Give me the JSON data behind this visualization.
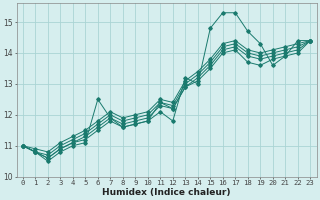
{
  "title": "",
  "xlabel": "Humidex (Indice chaleur)",
  "xlim": [
    -0.5,
    23.5
  ],
  "ylim": [
    10.0,
    15.6
  ],
  "yticks": [
    10,
    11,
    12,
    13,
    14,
    15
  ],
  "xticks": [
    0,
    1,
    2,
    3,
    4,
    5,
    6,
    7,
    8,
    9,
    10,
    11,
    12,
    13,
    14,
    15,
    16,
    17,
    18,
    19,
    20,
    21,
    22,
    23
  ],
  "bg_color": "#d6eeee",
  "grid_color": "#aad4d4",
  "line_color": "#1a7a6e",
  "lines": [
    [
      11.0,
      10.8,
      10.5,
      10.8,
      11.0,
      11.1,
      12.5,
      11.9,
      11.6,
      11.7,
      11.8,
      12.1,
      11.8,
      13.2,
      13.0,
      14.8,
      15.3,
      15.3,
      14.7,
      14.3,
      13.6,
      13.9,
      14.4,
      14.4
    ],
    [
      11.0,
      10.8,
      10.6,
      10.9,
      11.1,
      11.2,
      11.5,
      11.8,
      11.6,
      11.7,
      11.8,
      12.4,
      12.2,
      12.9,
      13.1,
      13.5,
      14.0,
      14.1,
      13.7,
      13.6,
      13.8,
      13.9,
      14.0,
      14.4
    ],
    [
      11.0,
      10.8,
      10.6,
      10.9,
      11.1,
      11.3,
      11.6,
      11.9,
      11.7,
      11.8,
      11.9,
      12.3,
      12.2,
      12.9,
      13.2,
      13.6,
      14.1,
      14.2,
      13.9,
      13.8,
      13.9,
      14.0,
      14.1,
      14.4
    ],
    [
      11.0,
      10.8,
      10.7,
      11.0,
      11.2,
      11.4,
      11.7,
      12.0,
      11.8,
      11.9,
      12.0,
      12.4,
      12.3,
      13.0,
      13.3,
      13.7,
      14.2,
      14.3,
      14.0,
      13.9,
      14.0,
      14.1,
      14.2,
      14.4
    ],
    [
      11.0,
      10.9,
      10.8,
      11.1,
      11.3,
      11.5,
      11.8,
      12.1,
      11.9,
      12.0,
      12.1,
      12.5,
      12.4,
      13.1,
      13.4,
      13.8,
      14.3,
      14.4,
      14.1,
      14.0,
      14.1,
      14.2,
      14.3,
      14.4
    ]
  ],
  "xlabel_fontsize": 6.5,
  "ylabel_fontsize": 6.5,
  "tick_fontsize": 5.2
}
